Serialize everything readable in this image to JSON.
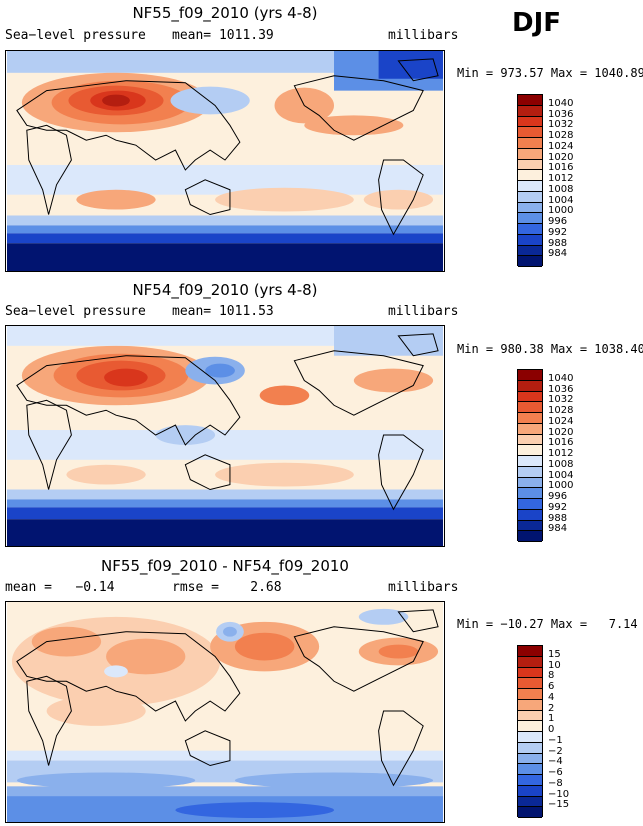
{
  "season": "DJF",
  "panels": [
    {
      "title": "NF55_f09_2010 (yrs 4-8)",
      "left_label": "Sea−level pressure",
      "center_label": "mean= 1011.39",
      "right_label": "millibars",
      "range_text": "Min = 973.57 Max = 1040.89",
      "levels": [
        "1040",
        "1036",
        "1032",
        "1028",
        "1024",
        "1020",
        "1016",
        "1012",
        "1008",
        "1004",
        "1000",
        "996",
        "992",
        "988",
        "984"
      ]
    },
    {
      "title": "NF54_f09_2010 (yrs 4-8)",
      "left_label": "Sea−level pressure",
      "center_label": "mean= 1011.53",
      "right_label": "millibars",
      "range_text": "Min = 980.38 Max = 1038.40",
      "levels": [
        "1040",
        "1036",
        "1032",
        "1028",
        "1024",
        "1020",
        "1016",
        "1012",
        "1008",
        "1004",
        "1000",
        "996",
        "992",
        "988",
        "984"
      ]
    },
    {
      "title": "NF55_f09_2010 - NF54_f09_2010",
      "left_label": "mean =   −0.14",
      "center_label": "rmse =    2.68",
      "right_label": "millibars",
      "range_text": "Min = −10.27 Max =   7.14",
      "levels": [
        "15",
        "10",
        "8",
        "6",
        "4",
        "2",
        "1",
        "0",
        "−1",
        "−2",
        "−4",
        "−6",
        "−8",
        "−10",
        "−15"
      ]
    }
  ],
  "chart_data": {
    "type": "heatmap",
    "variable": "Sea-level pressure",
    "units": "millibars",
    "season": "DJF",
    "maps": [
      {
        "title": "NF55_f09_2010 (yrs 4-8)",
        "mean": 1011.39,
        "min": 973.57,
        "max": 1040.89,
        "contour_levels": [
          984,
          988,
          992,
          996,
          1000,
          1004,
          1008,
          1012,
          1016,
          1020,
          1024,
          1028,
          1032,
          1036,
          1040
        ]
      },
      {
        "title": "NF54_f09_2010 (yrs 4-8)",
        "mean": 1011.53,
        "min": 980.38,
        "max": 1038.4,
        "contour_levels": [
          984,
          988,
          992,
          996,
          1000,
          1004,
          1008,
          1012,
          1016,
          1020,
          1024,
          1028,
          1032,
          1036,
          1040
        ]
      },
      {
        "title": "NF55_f09_2010 - NF54_f09_2010",
        "mean": -0.14,
        "rmse": 2.68,
        "min": -10.27,
        "max": 7.14,
        "contour_levels": [
          -15,
          -10,
          -8,
          -6,
          -4,
          -2,
          -1,
          0,
          1,
          2,
          4,
          6,
          8,
          10,
          15
        ]
      }
    ]
  },
  "colors": {
    "palette": [
      "#8b0000",
      "#b41e10",
      "#d9361c",
      "#e85a32",
      "#f2804f",
      "#f7a77a",
      "#fbcfb0",
      "#fdf0dd",
      "#dbe8fb",
      "#b4cdf3",
      "#8ab0ec",
      "#5c8fe6",
      "#3366e0",
      "#1a44c8",
      "#0a2896",
      "#011470"
    ]
  }
}
